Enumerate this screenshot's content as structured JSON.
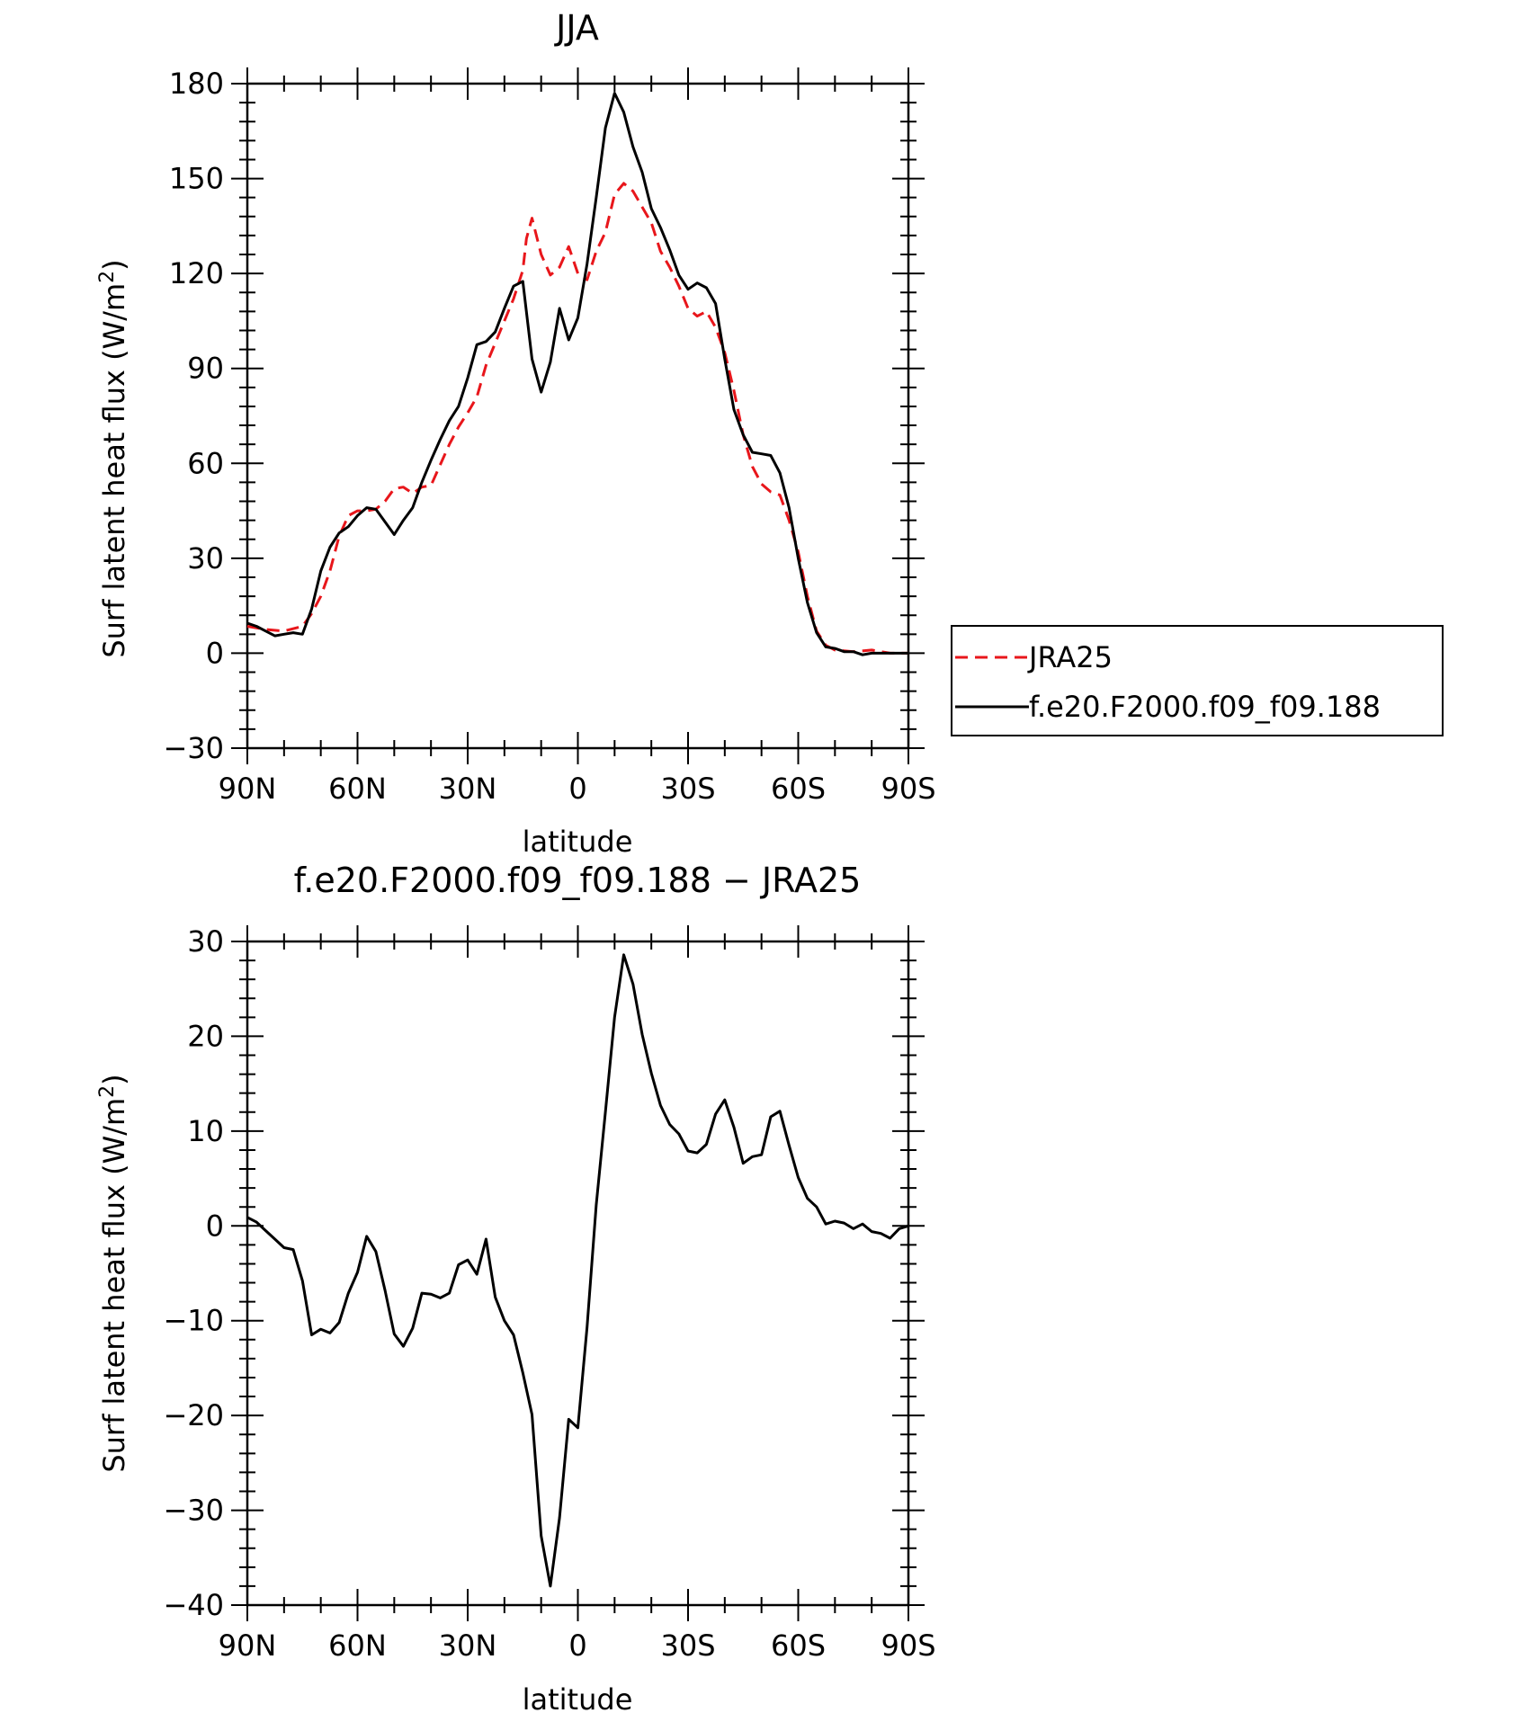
{
  "chart_data": [
    {
      "type": "line",
      "title": "JJA",
      "xlabel": "latitude",
      "ylabel": "Surf latent heat flux (W/m²)",
      "ylabel_parts": {
        "main": "Surf latent heat flux (W/m",
        "sup": "2",
        "close": ")"
      },
      "ylim": [
        -30,
        180
      ],
      "xlim": [
        90,
        -90
      ],
      "x_ticks": [
        90,
        60,
        30,
        0,
        -30,
        -60,
        -90
      ],
      "x_tick_labels": [
        "90N",
        "60N",
        "30N",
        "0",
        "30S",
        "60S",
        "90S"
      ],
      "y_ticks": [
        -30,
        0,
        30,
        60,
        90,
        120,
        150,
        180
      ],
      "y_tick_labels": [
        "−30",
        "0",
        "30",
        "60",
        "90",
        "120",
        "150",
        "180"
      ],
      "legend_position": "right",
      "series": [
        {
          "name": "JRA25",
          "color": "#e8161b",
          "style": "dashed",
          "x": [
            90,
            85,
            80,
            75,
            72.5,
            70,
            67.5,
            65,
            62.5,
            60,
            57.5,
            55,
            52.5,
            50,
            47.5,
            45,
            42.5,
            40,
            37.5,
            35,
            32.5,
            30,
            27.5,
            25,
            22.5,
            20,
            17.5,
            15,
            14,
            12.5,
            10,
            7.5,
            5,
            2.5,
            0,
            -2.5,
            -5,
            -7.5,
            -10,
            -12.5,
            -15,
            -17.5,
            -20,
            -22.5,
            -25,
            -27.5,
            -30,
            -32.5,
            -35,
            -37.5,
            -40,
            -42.5,
            -45,
            -47.5,
            -50,
            -52.5,
            -55,
            -57.5,
            -60,
            -62.5,
            -65,
            -67.5,
            -70,
            -75,
            -80,
            -85,
            -90
          ],
          "y": [
            8.5,
            7.5,
            7,
            8.5,
            12.5,
            18,
            26,
            37,
            43.5,
            45,
            45,
            45.5,
            48,
            52,
            52.5,
            50.5,
            52.5,
            53,
            59.5,
            66,
            71.5,
            76,
            81,
            91,
            98,
            105,
            112,
            121,
            131,
            137.5,
            126,
            119.5,
            122,
            128.5,
            120,
            118,
            127,
            133,
            145,
            148.5,
            146,
            141,
            136,
            127,
            122,
            116,
            109,
            106.5,
            108,
            103,
            95,
            83,
            69,
            59,
            53.5,
            51,
            50,
            42,
            32,
            18,
            7,
            2.5,
            1,
            0.5,
            1,
            0,
            0
          ]
        },
        {
          "name": "f.e20.F2000.f09_f09.188",
          "color": "#000000",
          "style": "solid",
          "x": [
            90,
            87.5,
            85,
            82.5,
            80,
            77.5,
            75,
            72.5,
            70,
            67.5,
            65,
            62.5,
            60,
            57.5,
            55,
            52.5,
            50,
            47.5,
            45,
            42.5,
            40,
            37.5,
            35,
            32.5,
            30,
            27.5,
            25,
            22.5,
            20,
            17.5,
            15,
            12.5,
            10,
            7.5,
            5,
            2.5,
            0,
            -2.5,
            -5,
            -7.5,
            -10,
            -12.5,
            -15,
            -17.5,
            -20,
            -22.5,
            -25,
            -27.5,
            -30,
            -32.5,
            -35,
            -37.5,
            -40,
            -42.5,
            -45,
            -47.5,
            -50,
            -52.5,
            -55,
            -57.5,
            -60,
            -62.5,
            -65,
            -67.5,
            -70,
            -72.5,
            -75,
            -77.5,
            -80,
            -82.5,
            -85,
            -87.5,
            -90
          ],
          "y": [
            9.5,
            8.5,
            7,
            5.5,
            6,
            6.5,
            6,
            14,
            26,
            33.5,
            38,
            40,
            43.5,
            46,
            45.5,
            41.5,
            37.5,
            42,
            46,
            54,
            61,
            67.5,
            73.5,
            78,
            87,
            97.5,
            98.5,
            101.5,
            109,
            116,
            117.5,
            93,
            82.5,
            92,
            109,
            99,
            106,
            123,
            144,
            166,
            177,
            171,
            160,
            152,
            140.5,
            134.5,
            127.5,
            119.5,
            115,
            117,
            115.5,
            110.5,
            93,
            77,
            69,
            63.5,
            63,
            62.5,
            57,
            46,
            30,
            16,
            6.5,
            2,
            1.5,
            0.5,
            0.5,
            -0.5,
            0,
            0,
            0,
            0,
            0
          ]
        }
      ]
    },
    {
      "type": "line",
      "title": "f.e20.F2000.f09_f09.188 − JRA25",
      "xlabel": "latitude",
      "ylabel": "Surf latent heat flux (W/m²)",
      "ylabel_parts": {
        "main": "Surf latent heat flux (W/m",
        "sup": "2",
        "close": ")"
      },
      "ylim": [
        -40,
        30
      ],
      "xlim": [
        90,
        -90
      ],
      "x_ticks": [
        90,
        60,
        30,
        0,
        -30,
        -60,
        -90
      ],
      "x_tick_labels": [
        "90N",
        "60N",
        "30N",
        "0",
        "30S",
        "60S",
        "90S"
      ],
      "y_ticks": [
        -40,
        -30,
        -20,
        -10,
        0,
        10,
        20,
        30
      ],
      "y_tick_labels": [
        "−40",
        "−30",
        "−20",
        "−10",
        "0",
        "10",
        "20",
        "30"
      ],
      "series": [
        {
          "color": "#000000",
          "style": "solid",
          "x": [
            90,
            87.5,
            85,
            82.5,
            80,
            77.5,
            75,
            72.5,
            70,
            67.5,
            65,
            62.5,
            60,
            57.5,
            55,
            52.5,
            50,
            47.5,
            45,
            42.5,
            40,
            37.5,
            35,
            32.5,
            30,
            27.5,
            25,
            22.5,
            20,
            17.5,
            15,
            12.5,
            10,
            7.5,
            5,
            2.5,
            0,
            -2.5,
            -5,
            -7.5,
            -10,
            -12.5,
            -15,
            -17.5,
            -20,
            -22.5,
            -25,
            -27.5,
            -30,
            -32.5,
            -35,
            -37.5,
            -40,
            -42.5,
            -45,
            -47.5,
            -50,
            -52.5,
            -55,
            -57.5,
            -60,
            -62.5,
            -65,
            -67.5,
            -70,
            -72.5,
            -75,
            -77.5,
            -80,
            -82.5,
            -85,
            -87.5,
            -90
          ],
          "y": [
            0.9,
            0.4,
            -0.5,
            -1.4,
            -2.3,
            -2.5,
            -5.8,
            -11.5,
            -10.9,
            -11.3,
            -10.2,
            -7.1,
            -4.9,
            -1.1,
            -2.7,
            -6.8,
            -11.4,
            -12.7,
            -10.8,
            -7.1,
            -7.2,
            -7.6,
            -7.1,
            -4.1,
            -3.6,
            -5.1,
            -1.4,
            -7.5,
            -10,
            -11.5,
            -15.5,
            -19.9,
            -32.7,
            -38,
            -30.8,
            -20.4,
            -21.3,
            -10.7,
            2.2,
            12,
            22,
            28.6,
            25.5,
            20.2,
            16.1,
            12.7,
            10.7,
            9.7,
            7.9,
            7.7,
            8.6,
            11.8,
            13.3,
            10.4,
            6.6,
            7.3,
            7.5,
            11.5,
            12.1,
            8.5,
            5.1,
            2.9,
            2,
            0.2,
            0.5,
            0.3,
            -0.3,
            0.2,
            -0.6,
            -0.8,
            -1.3,
            -0.3,
            0
          ]
        }
      ]
    }
  ]
}
